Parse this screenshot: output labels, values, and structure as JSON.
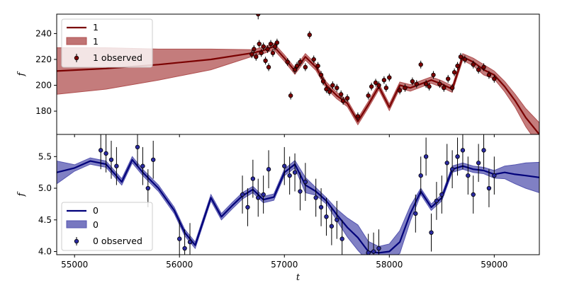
{
  "chart_data": {
    "type": "line",
    "xlabel": "t",
    "xlim": [
      54830,
      59430
    ],
    "xticks": [
      55000,
      56000,
      57000,
      58000,
      59000
    ],
    "panels": [
      {
        "name": "top",
        "ylabel": "f",
        "ylim": [
          162,
          255
        ],
        "yticks": [
          180,
          200,
          220,
          240
        ],
        "colors": {
          "line": "#7a0000",
          "band": "#b05050",
          "marker": "#7a0000"
        },
        "legend": {
          "position": "upper-left",
          "entries": [
            "1",
            "1",
            "1 observed"
          ]
        },
        "model": {
          "name": "1",
          "t": [
            54830,
            55300,
            55800,
            56300,
            56700,
            56800,
            56900,
            57000,
            57100,
            57200,
            57300,
            57400,
            57500,
            57600,
            57700,
            57800,
            57900,
            58000,
            58100,
            58200,
            58300,
            58400,
            58500,
            58600,
            58700,
            58800,
            58900,
            59000,
            59100,
            59200,
            59300,
            59430
          ],
          "mean": [
            211,
            213,
            216,
            220,
            225,
            227,
            230,
            221,
            211,
            222,
            214,
            200,
            192,
            186,
            172,
            185,
            199,
            183,
            200,
            198,
            201,
            204,
            201,
            197,
            222,
            218,
            212,
            208,
            199,
            188,
            175,
            162
          ],
          "band": [
            18,
            16,
            12,
            8,
            2.5,
            2.5,
            2.5,
            2.5,
            2.5,
            2.5,
            2.5,
            2.5,
            2.5,
            2.5,
            2.5,
            2.5,
            2.5,
            2.5,
            2.5,
            2.5,
            2.5,
            2.5,
            2.5,
            2.5,
            2.5,
            3,
            4,
            3,
            4,
            5,
            7,
            9
          ]
        },
        "observed": {
          "name": "1 observed",
          "t": [
            56690,
            56710,
            56730,
            56750,
            56760,
            56780,
            56800,
            56820,
            56840,
            56850,
            56870,
            56890,
            56910,
            56930,
            57030,
            57060,
            57100,
            57120,
            57150,
            57200,
            57240,
            57280,
            57320,
            57350,
            57370,
            57400,
            57430,
            57460,
            57500,
            57540,
            57560,
            57600,
            57700,
            57800,
            57830,
            57870,
            57900,
            57950,
            57970,
            58000,
            58100,
            58150,
            58220,
            58260,
            58300,
            58350,
            58380,
            58420,
            58480,
            58520,
            58560,
            58600,
            58620,
            58650,
            58680,
            58720,
            58800,
            58850,
            58900,
            58950,
            59000
          ],
          "f": [
            224,
            228,
            222,
            255,
            232,
            225,
            230,
            219,
            228,
            214,
            232,
            225,
            230,
            233,
            218,
            192,
            212,
            215,
            218,
            214,
            239,
            220,
            215,
            208,
            203,
            197,
            195,
            200,
            198,
            193,
            188,
            190,
            176,
            192,
            199,
            202,
            200,
            204,
            198,
            206,
            196,
            198,
            203,
            201,
            216,
            201,
            199,
            208,
            201,
            198,
            205,
            198,
            210,
            215,
            222,
            220,
            216,
            212,
            214,
            208,
            205
          ],
          "err": [
            3,
            3,
            3,
            4,
            3,
            3,
            3,
            3,
            3,
            3,
            3,
            3,
            3,
            3,
            3,
            3,
            3,
            3,
            3,
            3,
            3,
            3,
            3,
            3,
            3,
            3,
            3,
            3,
            3,
            3,
            3,
            3,
            3,
            3,
            3,
            3,
            3,
            3,
            3,
            3,
            3,
            3,
            3,
            3,
            3,
            3,
            3,
            3,
            3,
            3,
            3,
            3,
            3,
            3,
            3,
            3,
            3,
            3,
            3,
            3,
            3
          ]
        }
      },
      {
        "name": "bottom",
        "ylabel": "f",
        "ylim": [
          3.95,
          5.85
        ],
        "yticks": [
          4.0,
          4.5,
          5.0,
          5.5
        ],
        "colors": {
          "line": "#00007a",
          "band": "#5555b0",
          "marker": "#2a2aa0"
        },
        "legend": {
          "position": "lower-left",
          "entries": [
            "0",
            "0",
            "0 observed"
          ]
        },
        "model": {
          "name": "0",
          "t": [
            54830,
            55000,
            55150,
            55300,
            55450,
            55550,
            55650,
            55800,
            55950,
            56050,
            56150,
            56300,
            56400,
            56500,
            56600,
            56700,
            56800,
            56900,
            57000,
            57100,
            57200,
            57300,
            57400,
            57500,
            57600,
            57700,
            57800,
            57900,
            58000,
            58100,
            58200,
            58300,
            58400,
            58500,
            58600,
            58700,
            58800,
            58900,
            59000,
            59100,
            59200,
            59300,
            59430
          ],
          "mean": [
            5.25,
            5.32,
            5.43,
            5.38,
            5.1,
            5.45,
            5.25,
            5.0,
            4.65,
            4.3,
            4.1,
            4.85,
            4.55,
            4.72,
            4.88,
            4.98,
            4.82,
            4.86,
            5.25,
            5.38,
            5.05,
            4.95,
            4.8,
            4.58,
            4.38,
            4.22,
            4.0,
            3.98,
            4.0,
            4.15,
            4.6,
            4.95,
            4.7,
            4.85,
            5.3,
            5.35,
            5.3,
            5.28,
            5.22,
            5.25,
            5.22,
            5.2,
            5.17
          ],
          "band": [
            0.18,
            0.05,
            0.05,
            0.05,
            0.05,
            0.05,
            0.05,
            0.05,
            0.05,
            0.05,
            0.05,
            0.05,
            0.05,
            0.05,
            0.05,
            0.05,
            0.05,
            0.05,
            0.05,
            0.06,
            0.12,
            0.06,
            0.05,
            0.09,
            0.15,
            0.2,
            0.16,
            0.1,
            0.12,
            0.18,
            0.12,
            0.05,
            0.05,
            0.05,
            0.05,
            0.05,
            0.05,
            0.05,
            0.06,
            0.1,
            0.15,
            0.2,
            0.24
          ]
        },
        "observed": {
          "name": "0 observed",
          "t": [
            55250,
            55300,
            55350,
            55400,
            55600,
            55650,
            55700,
            55750,
            56000,
            56050,
            56100,
            56600,
            56650,
            56700,
            56750,
            56800,
            56850,
            57000,
            57050,
            57100,
            57150,
            57200,
            57300,
            57350,
            57400,
            57450,
            57500,
            57550,
            57800,
            57850,
            57900,
            58250,
            58300,
            58350,
            58400,
            58450,
            58500,
            58550,
            58600,
            58650,
            58700,
            58750,
            58800,
            58850,
            58900,
            58950,
            59000
          ],
          "f": [
            5.6,
            5.55,
            5.45,
            5.35,
            5.65,
            5.35,
            5.0,
            5.45,
            4.2,
            4.05,
            4.15,
            4.9,
            4.7,
            5.15,
            4.85,
            4.9,
            5.3,
            5.35,
            5.2,
            5.25,
            4.95,
            5.1,
            4.85,
            4.7,
            4.55,
            4.4,
            4.5,
            4.2,
            3.98,
            4.0,
            4.05,
            4.6,
            5.2,
            5.5,
            4.3,
            4.8,
            4.9,
            5.4,
            5.3,
            5.5,
            5.6,
            5.2,
            4.9,
            5.4,
            5.6,
            5.0,
            5.2
          ],
          "err": [
            0.3,
            0.3,
            0.3,
            0.3,
            0.3,
            0.3,
            0.3,
            0.3,
            0.3,
            0.3,
            0.3,
            0.3,
            0.3,
            0.3,
            0.3,
            0.3,
            0.3,
            0.3,
            0.3,
            0.3,
            0.3,
            0.3,
            0.3,
            0.3,
            0.3,
            0.3,
            0.3,
            0.3,
            0.3,
            0.3,
            0.3,
            0.3,
            0.3,
            0.3,
            0.3,
            0.3,
            0.3,
            0.3,
            0.3,
            0.3,
            0.3,
            0.3,
            0.3,
            0.3,
            0.3,
            0.3,
            0.3
          ]
        }
      }
    ]
  }
}
